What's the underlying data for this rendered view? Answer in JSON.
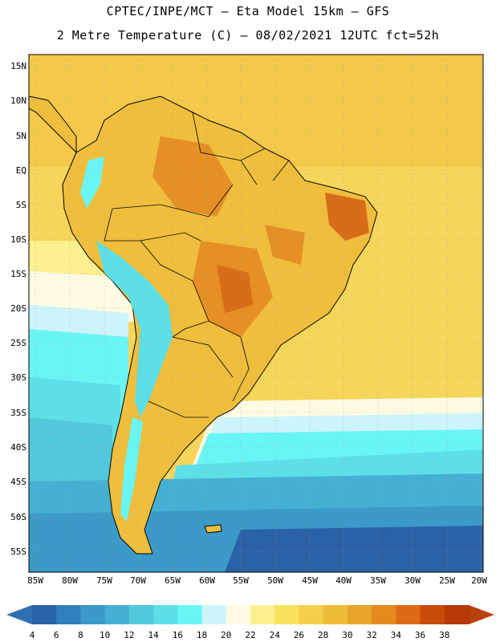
{
  "title": {
    "line1": "CPTEC/INPE/MCT –  Eta Model 15km – GFS",
    "line2": "2 Metre Temperature (C) – 08/02/2021 12UTC fct=52h"
  },
  "map": {
    "lat_labels": [
      "15N",
      "10N",
      "5N",
      "EQ",
      "5S",
      "10S",
      "15S",
      "20S",
      "25S",
      "30S",
      "35S",
      "40S",
      "45S",
      "50S",
      "55S"
    ],
    "lon_labels": [
      "85W",
      "80W",
      "75W",
      "70W",
      "65W",
      "60W",
      "55W",
      "50W",
      "45W",
      "40W",
      "35W",
      "30W",
      "25W",
      "20W"
    ]
  },
  "colorbar": {
    "labels": [
      "4",
      "6",
      "8",
      "10",
      "12",
      "14",
      "16",
      "18",
      "20",
      "22",
      "24",
      "26",
      "28",
      "30",
      "32",
      "34",
      "36",
      "38"
    ],
    "colors": [
      "#2a62a8",
      "#3180bd",
      "#3b9ac8",
      "#46b0d4",
      "#52c8dc",
      "#5ddfe8",
      "#6af5f5",
      "#ccf5fb",
      "#fffbe3",
      "#fdf08f",
      "#f9e25d",
      "#f3cf4b",
      "#eebc39",
      "#e9a52a",
      "#e48a1f",
      "#de6b13",
      "#c84b08",
      "#b63906"
    ],
    "low_color": "#2e70b0",
    "high_color": "#b8410e"
  },
  "colors": {
    "ocean_deep": "#2a62a8",
    "ocean_mid": "#3a8cc4",
    "ocean_light": "#5cd4e6",
    "ocean_cyan": "#6af5f5",
    "ocean_pale": "#ccf5fb",
    "ocean_cream": "#fffbe3",
    "warm_ocean": "#f6d65a",
    "land_base": "#efbe3c",
    "land_hot": "#e58f24",
    "land_hotter": "#d86c18",
    "andes": "#5ddfe8",
    "border": "#000000"
  }
}
